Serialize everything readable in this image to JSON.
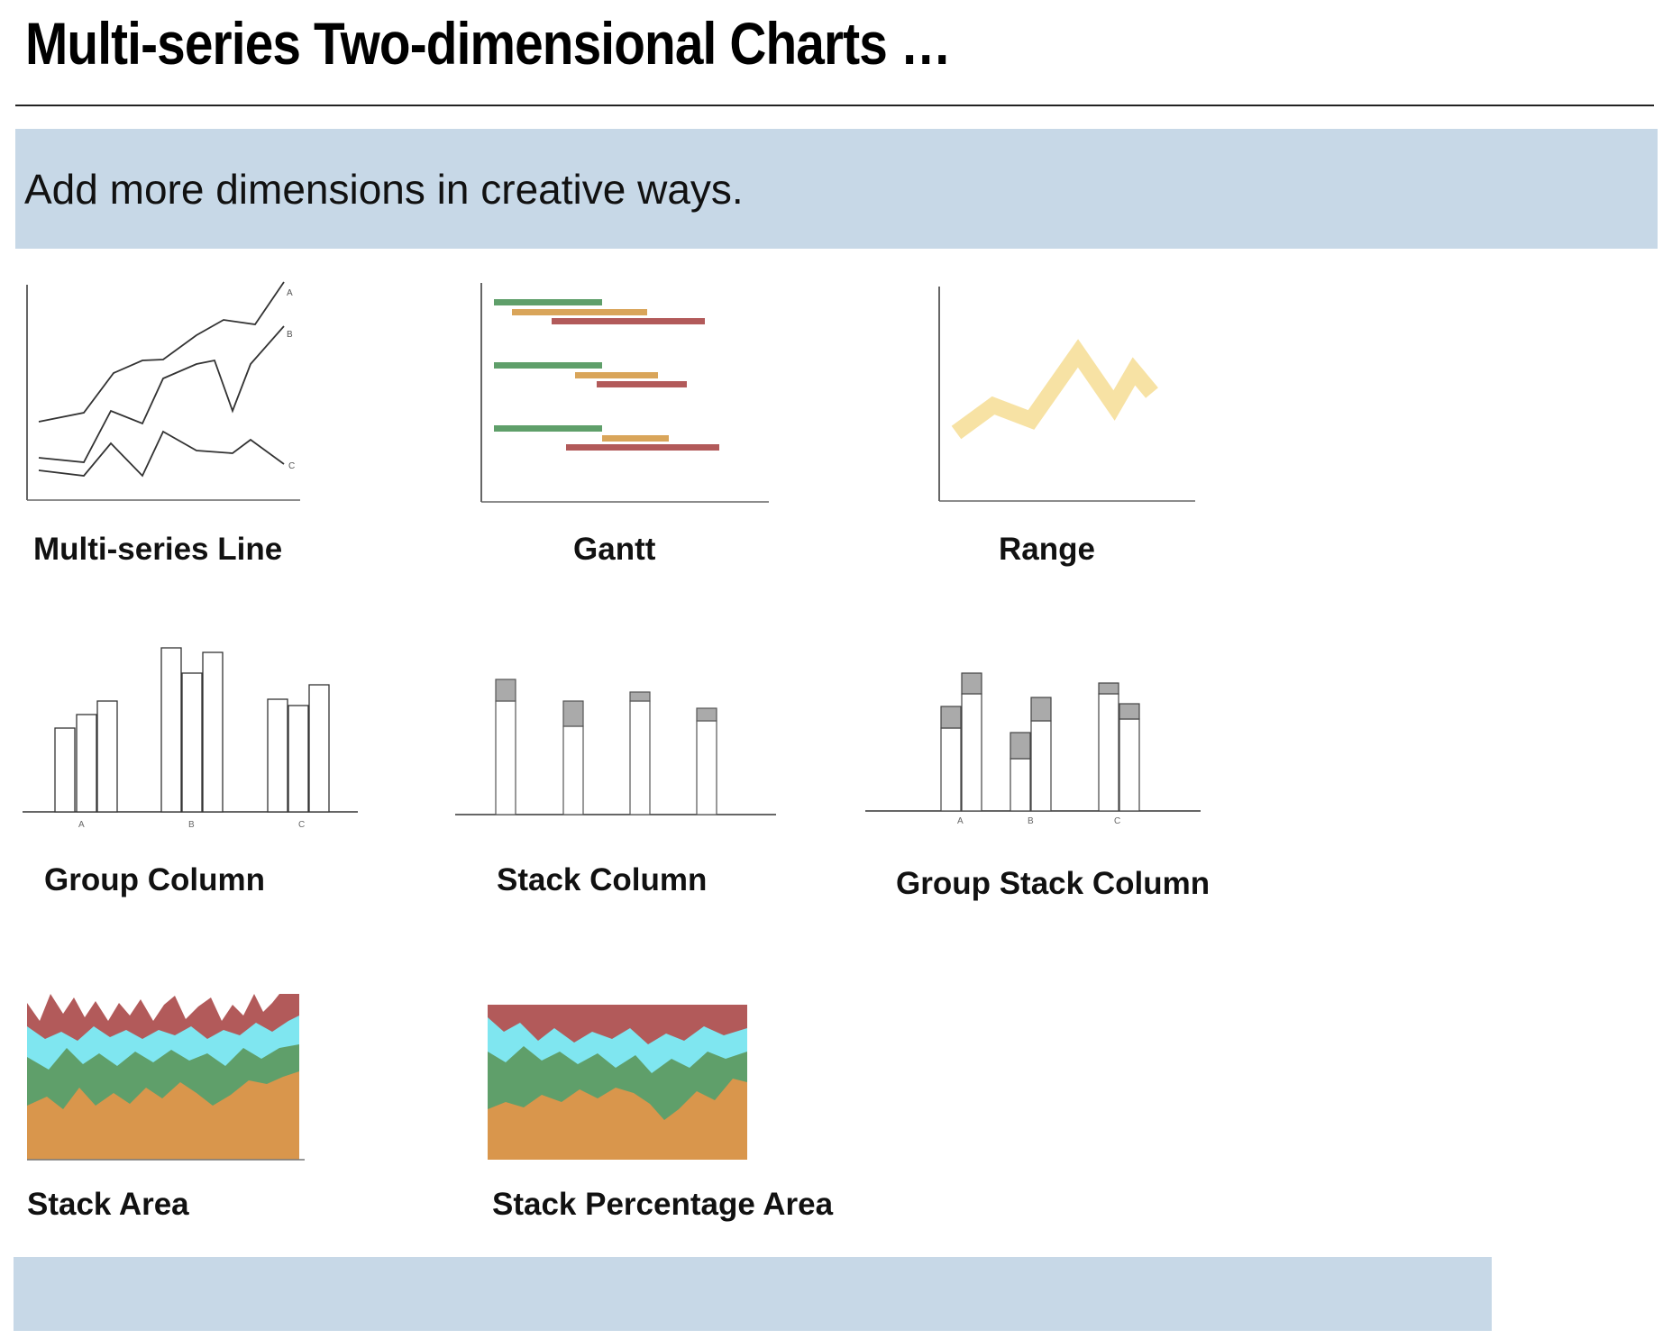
{
  "slide": {
    "title": "Multi-series Two-dimensional Charts …",
    "subtitle": "Add more dimensions in creative ways."
  },
  "charts": [
    {
      "id": "multi-series-line",
      "label": "Multi-series Line",
      "series_labels": [
        "A",
        "B",
        "C"
      ]
    },
    {
      "id": "gantt",
      "label": "Gantt"
    },
    {
      "id": "range",
      "label": "Range"
    },
    {
      "id": "group-column",
      "label": "Group Column",
      "category_labels": [
        "A",
        "B",
        "C"
      ]
    },
    {
      "id": "stack-column",
      "label": "Stack Column"
    },
    {
      "id": "group-stack-column",
      "label": "Group Stack Column",
      "category_labels": [
        "A",
        "B",
        "C"
      ]
    },
    {
      "id": "stack-area",
      "label": "Stack Area"
    },
    {
      "id": "stack-percentage-area",
      "label": "Stack Percentage Area"
    }
  ],
  "colors": {
    "band": "#c7d8e7",
    "series_red": "#b25a5a",
    "series_cyan": "#7fe6f0",
    "series_green": "#5f9f6a",
    "series_orange": "#d9964c",
    "gantt_green": "#5f9f6a",
    "gantt_orange": "#d9a55a",
    "gantt_red": "#b25a5a",
    "range_fill": "#f7e2a4"
  }
}
